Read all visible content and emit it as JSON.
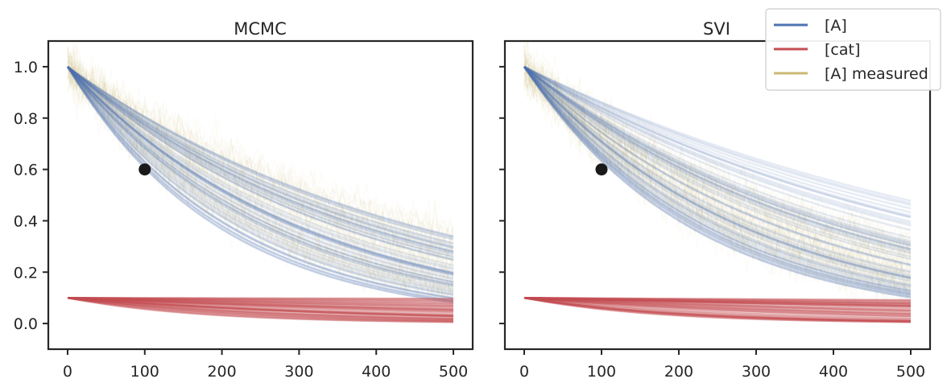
{
  "chart_data": [
    {
      "type": "line",
      "title": "MCMC",
      "xlim": [
        -25,
        525
      ],
      "ylim": [
        -0.1,
        1.1
      ],
      "xticks": [
        0,
        100,
        200,
        300,
        400,
        500
      ],
      "yticks": [
        0.0,
        0.2,
        0.4,
        0.6,
        0.8,
        1.0
      ],
      "xtick_labels": [
        "0",
        "100",
        "200",
        "300",
        "400",
        "500"
      ],
      "ytick_labels": [
        "0.0",
        "0.2",
        "0.4",
        "0.6",
        "0.8",
        "1.0"
      ],
      "series": [
        {
          "name": "[A] measured",
          "color": "#ccb974",
          "kind": "noisy-bundle",
          "count": 60,
          "start": 1.0,
          "end_range": [
            0.12,
            0.38
          ],
          "noise": 0.045
        },
        {
          "name": "[A]",
          "color": "#4c72b0",
          "kind": "bundle",
          "count": 60,
          "start": 1.0,
          "end_range": [
            0.08,
            0.37
          ]
        },
        {
          "name": "[cat]",
          "color": "#c44e52",
          "kind": "bundle",
          "count": 60,
          "start": 0.1,
          "end_range": [
            0.005,
            0.1
          ]
        }
      ],
      "highlight_point": {
        "x": 100,
        "y": 0.6,
        "color": "#1a1a1a"
      }
    },
    {
      "type": "line",
      "title": "SVI",
      "xlim": [
        -25,
        525
      ],
      "ylim": [
        -0.1,
        1.1
      ],
      "xticks": [
        0,
        100,
        200,
        300,
        400,
        500
      ],
      "yticks": [
        0.0,
        0.2,
        0.4,
        0.6,
        0.8,
        1.0
      ],
      "xtick_labels": [
        "0",
        "100",
        "200",
        "300",
        "400",
        "500"
      ],
      "ytick_labels": [],
      "series": [
        {
          "name": "[A] measured",
          "color": "#ccb974",
          "kind": "noisy-bundle",
          "count": 60,
          "start": 1.0,
          "end_range": [
            0.12,
            0.35
          ],
          "noise": 0.045
        },
        {
          "name": "[A]",
          "color": "#4c72b0",
          "kind": "bundle",
          "count": 60,
          "start": 1.0,
          "end_range": [
            0.1,
            0.49
          ]
        },
        {
          "name": "[cat]",
          "color": "#c44e52",
          "kind": "bundle",
          "count": 60,
          "start": 0.1,
          "end_range": [
            0.005,
            0.1
          ]
        }
      ],
      "highlight_point": {
        "x": 100,
        "y": 0.6,
        "color": "#1a1a1a"
      }
    }
  ],
  "legend": {
    "placement": "top-right",
    "items": [
      {
        "label": "[A]",
        "color": "#4c72b0"
      },
      {
        "label": "[cat]",
        "color": "#c44e52"
      },
      {
        "label": "[A] measured",
        "color": "#ccb974"
      }
    ]
  }
}
